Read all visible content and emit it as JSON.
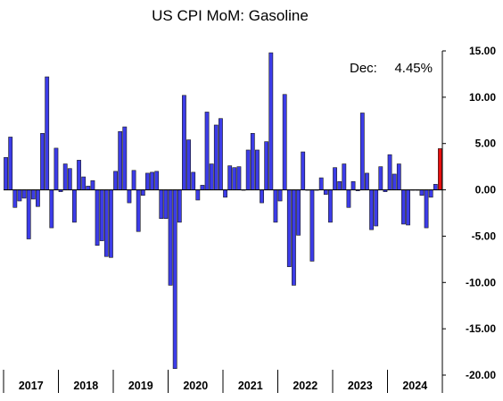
{
  "chart_data": {
    "type": "bar",
    "title": "US CPI MoM: Gasoline",
    "annotation": {
      "label": "Dec:",
      "value": "4.45%"
    },
    "xlabel": "",
    "ylabel": "",
    "ylim": [
      -20,
      15
    ],
    "y_ticks": [
      "15.00",
      "10.00",
      "5.00",
      "0.00",
      "-5.00",
      "-10.00",
      "-15.00",
      "-20.00"
    ],
    "y_tick_values": [
      15,
      10,
      5,
      0,
      -5,
      -10,
      -15,
      -20
    ],
    "y_axis_position": "right",
    "grid": false,
    "legend": "none",
    "year_labels": [
      "2017",
      "2018",
      "2019",
      "2020",
      "2021",
      "2022",
      "2023",
      "2024"
    ],
    "series": [
      {
        "values": [
          3.5,
          5.7,
          -1.9,
          -1.2,
          -0.9,
          -5.3,
          -1.0,
          -1.8,
          6.1,
          12.2,
          -4.1,
          4.5,
          -0.2,
          2.8,
          2.3,
          -3.5,
          3.2,
          1.4,
          0.4,
          1.0,
          -6.0,
          -5.5,
          -7.2,
          -7.3,
          2.0,
          6.3,
          6.8,
          -1.4,
          2.1,
          -4.5,
          -0.6,
          1.8,
          1.9,
          2.0,
          -3.1,
          -3.1,
          -10.3,
          -19.3,
          -3.5,
          10.2,
          5.4,
          1.9,
          -1.1,
          0.5,
          8.4,
          2.8,
          7.0,
          7.7,
          -0.8,
          2.6,
          2.4,
          2.5,
          0.0,
          4.3,
          6.1,
          4.3,
          -1.4,
          5.2,
          14.8,
          -3.5,
          -1.2,
          10.3,
          -8.3,
          -10.3,
          -4.9,
          4.1,
          0.0,
          -7.7,
          0.0,
          1.3,
          -0.5,
          -3.5,
          2.4,
          0.9,
          2.8,
          -1.9,
          0.9,
          -0.1,
          8.3,
          1.8,
          -4.3,
          -3.9,
          2.5,
          -0.2,
          3.8,
          1.7,
          2.8,
          -3.7,
          -3.8,
          0.0,
          0.0,
          -0.6,
          -4.1,
          -0.8,
          0.6,
          4.45
        ],
        "color": "#3c3ce8",
        "highlight_color": "#e81010",
        "highlight_index": 95
      }
    ]
  }
}
